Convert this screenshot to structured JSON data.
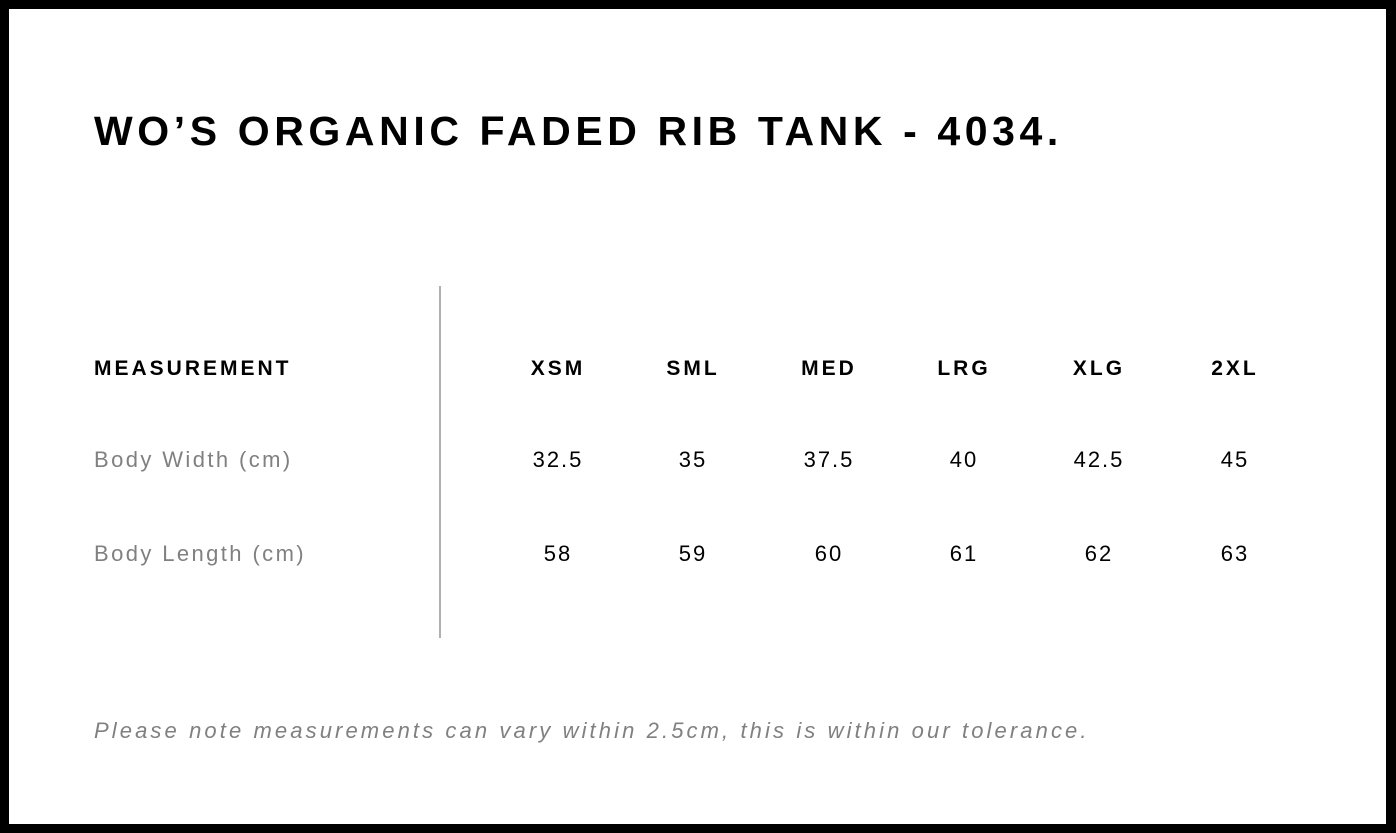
{
  "title": "WO’S ORGANIC FADED RIB TANK - 4034.",
  "table": {
    "header_label": "MEASUREMENT",
    "sizes": [
      "XSM",
      "SML",
      "MED",
      "LRG",
      "XLG",
      "2XL"
    ],
    "rows": [
      {
        "label": "Body Width (cm)",
        "values": [
          "32.5",
          "35",
          "37.5",
          "40",
          "42.5",
          "45"
        ]
      },
      {
        "label": "Body Length (cm)",
        "values": [
          "58",
          "59",
          "60",
          "61",
          "62",
          "63"
        ]
      }
    ]
  },
  "note": "Please note measurements can vary within 2.5cm, this is within our tolerance."
}
